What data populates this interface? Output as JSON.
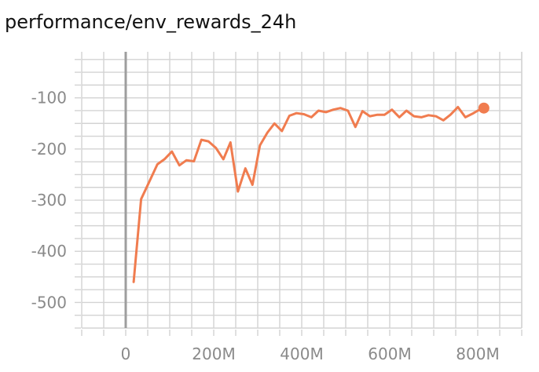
{
  "chart_data": {
    "type": "line",
    "title": "performance/env_rewards_24h",
    "xlabel": "",
    "ylabel": "",
    "xlim": [
      -100000000,
      900000000
    ],
    "ylim": [
      -550,
      -10
    ],
    "x_ticks": [
      0,
      200000000,
      400000000,
      600000000,
      800000000
    ],
    "x_tick_labels": [
      "0",
      "200M",
      "400M",
      "600M",
      "800M"
    ],
    "y_ticks": [
      -100,
      -200,
      -300,
      -400,
      -500
    ],
    "y_tick_labels": [
      "-100",
      "-200",
      "-300",
      "-400",
      "-500"
    ],
    "grid": true,
    "colors": {
      "series": "#f07c4f",
      "grid": "#d3d3d3",
      "zero_line": "#9e9e9e",
      "tick_text": "#8a8a8a"
    },
    "series": [
      {
        "x": [
          18000000,
          35000000,
          53000000,
          72000000,
          88000000,
          105000000,
          122000000,
          138000000,
          155000000,
          172000000,
          188000000,
          205000000,
          222000000,
          238000000,
          255000000,
          272000000,
          288000000,
          305000000,
          322000000,
          338000000,
          355000000,
          372000000,
          388000000,
          405000000,
          422000000,
          438000000,
          455000000,
          472000000,
          488000000,
          505000000,
          522000000,
          538000000,
          555000000,
          572000000,
          588000000,
          605000000,
          622000000,
          638000000,
          655000000,
          672000000,
          688000000,
          705000000,
          722000000,
          738000000,
          755000000,
          772000000,
          788000000,
          800000000,
          814000000
        ],
        "values": [
          -460,
          -298,
          -265,
          -230,
          -220,
          -205,
          -232,
          -222,
          -224,
          -182,
          -185,
          -198,
          -220,
          -187,
          -283,
          -238,
          -270,
          -193,
          -168,
          -150,
          -165,
          -135,
          -130,
          -132,
          -138,
          -125,
          -128,
          -123,
          -120,
          -125,
          -157,
          -126,
          -136,
          -133,
          -133,
          -123,
          -138,
          -125,
          -136,
          -138,
          -134,
          -136,
          -144,
          -133,
          -118,
          -138,
          -131,
          -125,
          -120
        ]
      }
    ],
    "last_point_marker": true
  }
}
